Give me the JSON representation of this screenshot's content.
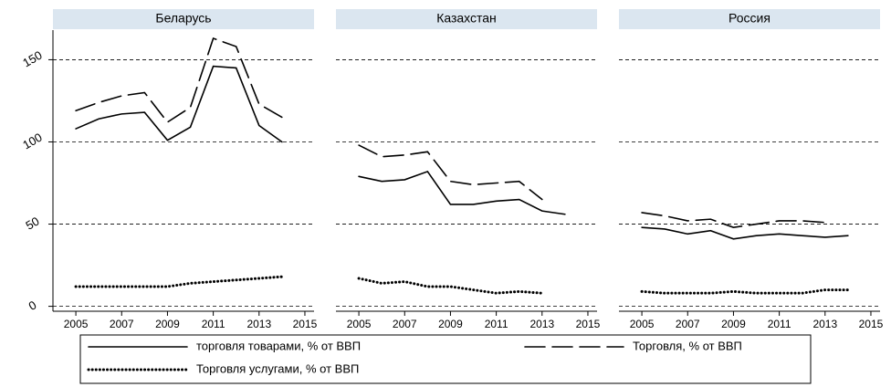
{
  "chart_data": [
    {
      "type": "line",
      "title": "Беларусь",
      "x": [
        2005,
        2006,
        2007,
        2008,
        2009,
        2010,
        2011,
        2012,
        2013,
        2014
      ],
      "series": [
        {
          "name": "торговля товарами, % от ВВП",
          "color": "#000000",
          "style": "solid",
          "values": [
            108,
            114,
            117,
            118,
            101,
            109,
            146,
            145,
            110,
            100
          ]
        },
        {
          "name": "Торговля, % от ВВП",
          "color": "#000000",
          "style": "dashed",
          "values": [
            119,
            124,
            128,
            130,
            112,
            121,
            163,
            158,
            123,
            115
          ]
        },
        {
          "name": "Торговля услугами, % от ВВП",
          "color": "#000000",
          "style": "dotted",
          "values": [
            12,
            12,
            12,
            12,
            12,
            14,
            15,
            16,
            17,
            18
          ]
        }
      ],
      "xlim": [
        2004,
        2015.4
      ],
      "xticks": [
        2005,
        2007,
        2009,
        2011,
        2013,
        2015
      ],
      "ylim": [
        -3,
        168
      ],
      "yticks": [
        0,
        50,
        100,
        150
      ],
      "grid": true
    },
    {
      "type": "line",
      "title": "Казахстан",
      "x": [
        2005,
        2006,
        2007,
        2008,
        2009,
        2010,
        2011,
        2012,
        2013,
        2014
      ],
      "series": [
        {
          "name": "торговля товарами, % от ВВП",
          "color": "#000000",
          "style": "solid",
          "values": [
            79,
            76,
            77,
            82,
            62,
            62,
            64,
            65,
            58,
            56
          ]
        },
        {
          "name": "Торговля, % от ВВП",
          "color": "#000000",
          "style": "dashed",
          "values": [
            98,
            91,
            92,
            94,
            76,
            74,
            75,
            76,
            65,
            null
          ]
        },
        {
          "name": "Торговля услугами, % от ВВП",
          "color": "#000000",
          "style": "dotted",
          "values": [
            17,
            14,
            15,
            12,
            12,
            10,
            8,
            9,
            8,
            null
          ]
        }
      ],
      "xlim": [
        2004,
        2015.4
      ],
      "xticks": [
        2005,
        2007,
        2009,
        2011,
        2013,
        2015
      ],
      "ylim": [
        -3,
        168
      ],
      "yticks": [
        0,
        50,
        100,
        150
      ],
      "grid": true
    },
    {
      "type": "line",
      "title": "Россия",
      "x": [
        2005,
        2006,
        2007,
        2008,
        2009,
        2010,
        2011,
        2012,
        2013,
        2014
      ],
      "series": [
        {
          "name": "торговля товарами, % от ВВП",
          "color": "#000000",
          "style": "solid",
          "values": [
            48,
            47,
            44,
            46,
            41,
            43,
            44,
            43,
            42,
            43
          ]
        },
        {
          "name": "Торговля, % от ВВП",
          "color": "#000000",
          "style": "dashed",
          "values": [
            57,
            55,
            52,
            53,
            48,
            50,
            52,
            52,
            51,
            null
          ]
        },
        {
          "name": "Торговля услугами, % от ВВП",
          "color": "#000000",
          "style": "dotted",
          "values": [
            9,
            8,
            8,
            8,
            9,
            8,
            8,
            8,
            10,
            10
          ]
        }
      ],
      "xlim": [
        2004,
        2015.4
      ],
      "xticks": [
        2005,
        2007,
        2009,
        2011,
        2013,
        2015
      ],
      "ylim": [
        -3,
        168
      ],
      "yticks": [
        0,
        50,
        100,
        150
      ],
      "grid": true
    }
  ]
}
